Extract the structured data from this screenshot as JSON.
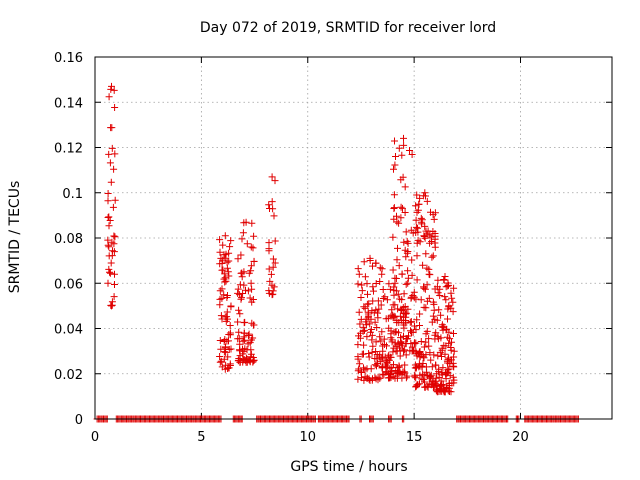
{
  "chart_data": {
    "type": "scatter",
    "title": "Day 072 of 2019, SRMTID for receiver lord",
    "xlabel": "GPS time / hours",
    "ylabel": "SRMTID / TECUs",
    "xlim": [
      0,
      24.3
    ],
    "ylim": [
      0,
      0.16
    ],
    "x_ticks": [
      0,
      5,
      10,
      15,
      20
    ],
    "x_tick_labels": [
      "0",
      "5",
      "10",
      "15",
      "20"
    ],
    "y_ticks": [
      0,
      0.02,
      0.04,
      0.06,
      0.08,
      0.1,
      0.12,
      0.14,
      0.16
    ],
    "y_tick_labels": [
      "0",
      "0.02",
      "0.04",
      "0.06",
      "0.08",
      "0.1",
      "0.12",
      "0.14",
      "0.16"
    ],
    "grid": true,
    "marker": "plus",
    "color": "#e00000",
    "series": [
      {
        "name": "SRMTID",
        "clusters": [
          {
            "x_start": 0.6,
            "x_end": 0.95,
            "y_low": 0.05,
            "y_high": 0.147,
            "count": 42
          },
          {
            "x_start": 5.85,
            "x_end": 6.4,
            "y_low": 0.022,
            "y_high": 0.081,
            "count": 70
          },
          {
            "x_start": 6.7,
            "x_end": 7.5,
            "y_low": 0.025,
            "y_high": 0.087,
            "count": 90
          },
          {
            "x_start": 8.15,
            "x_end": 8.5,
            "y_low": 0.055,
            "y_high": 0.107,
            "count": 22
          },
          {
            "x_start": 12.35,
            "x_end": 13.5,
            "y_low": 0.017,
            "y_high": 0.071,
            "count": 110
          },
          {
            "x_start": 13.5,
            "x_end": 14.7,
            "y_low": 0.018,
            "y_high": 0.06,
            "count": 110
          },
          {
            "x_start": 14.0,
            "x_end": 15.0,
            "y_low": 0.03,
            "y_high": 0.124,
            "count": 90
          },
          {
            "x_start": 15.0,
            "x_end": 16.0,
            "y_low": 0.014,
            "y_high": 0.1,
            "count": 150
          },
          {
            "x_start": 16.0,
            "x_end": 16.9,
            "y_low": 0.012,
            "y_high": 0.063,
            "count": 120
          }
        ],
        "zero_runs": [
          [
            0.1,
            0.6
          ],
          [
            1.0,
            5.95
          ],
          [
            6.5,
            6.95
          ],
          [
            7.6,
            10.4
          ],
          [
            10.5,
            12.0
          ],
          [
            12.45,
            12.55
          ],
          [
            12.9,
            13.1
          ],
          [
            13.8,
            13.95
          ],
          [
            14.45,
            14.55
          ],
          [
            17.0,
            19.45
          ],
          [
            19.8,
            19.95
          ],
          [
            20.2,
            22.75
          ]
        ]
      }
    ]
  }
}
